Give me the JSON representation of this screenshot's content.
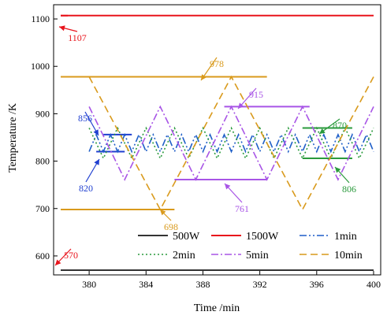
{
  "chart_data": {
    "type": "line",
    "xlabel": "Time /min",
    "ylabel": "Temperature /K",
    "xlim": [
      377.5,
      400.5
    ],
    "ylim": [
      560,
      1130
    ],
    "x_ticks": [
      "380",
      "384",
      "388",
      "392",
      "396",
      "400"
    ],
    "y_ticks": [
      "600",
      "700",
      "800",
      "900",
      "1000",
      "1100"
    ],
    "legend_position": "bottom",
    "series": [
      {
        "name": "500W",
        "color": "#333333",
        "style": "solid",
        "x": [
          378.0,
          400.0
        ],
        "y": [
          570,
          570
        ]
      },
      {
        "name": "1500W",
        "color": "#e8141c",
        "style": "solid",
        "x": [
          378.0,
          400.0
        ],
        "y": [
          1107,
          1107
        ]
      },
      {
        "name": "1min",
        "color": "#1f5fc8",
        "style": "dashdotdot",
        "x": [
          380.0,
          380.5,
          381.0,
          381.5,
          382.0,
          382.5,
          383.0,
          383.5,
          384.0,
          384.5,
          385.0,
          385.5,
          386.0,
          386.5,
          387.0,
          387.5,
          388.0,
          388.5,
          389.0,
          389.5,
          390.0,
          390.5,
          391.0,
          391.5,
          392.0,
          392.5,
          393.0,
          393.5,
          394.0,
          394.5,
          395.0,
          395.5,
          396.0,
          396.5,
          397.0,
          397.5,
          398.0,
          398.5,
          399.0,
          399.5,
          400.0
        ],
        "y": [
          820,
          856,
          820,
          856,
          820,
          856,
          820,
          856,
          820,
          856,
          820,
          856,
          820,
          856,
          820,
          856,
          820,
          856,
          820,
          856,
          820,
          856,
          820,
          856,
          820,
          856,
          820,
          856,
          820,
          856,
          820,
          856,
          820,
          856,
          820,
          856,
          820,
          856,
          820,
          856,
          820
        ]
      },
      {
        "name": "2min",
        "color": "#2a9a3c",
        "style": "dot",
        "x": [
          380,
          381,
          382,
          383,
          384,
          385,
          386,
          387,
          388,
          389,
          390,
          391,
          392,
          393,
          394,
          395,
          396,
          397,
          398,
          399,
          400
        ],
        "y": [
          870,
          806,
          870,
          806,
          870,
          806,
          870,
          806,
          870,
          806,
          870,
          806,
          870,
          806,
          870,
          806,
          870,
          806,
          870,
          806,
          870
        ]
      },
      {
        "name": "5min",
        "color": "#a855e6",
        "style": "dashdot",
        "x": [
          380.0,
          382.5,
          385.0,
          387.5,
          390.0,
          392.5,
          395.0,
          397.5,
          400.0
        ],
        "y": [
          915,
          761,
          915,
          761,
          915,
          761,
          915,
          761,
          915
        ]
      },
      {
        "name": "10min",
        "color": "#d99a1c",
        "style": "dash",
        "x": [
          380.0,
          385.0,
          390.0,
          395.0,
          400.0
        ],
        "y": [
          978,
          698,
          978,
          698,
          978
        ]
      }
    ],
    "reference_lines": [
      {
        "value": 1107,
        "label": "1107",
        "color": "#e8141c",
        "x_range": [
          378.0,
          378.5
        ]
      },
      {
        "value": 570,
        "label": "570",
        "color": "#e8141c",
        "x_range": [
          378.0,
          378.5
        ]
      },
      {
        "value": 978,
        "label": "978",
        "color": "#d99a1c",
        "x_range": [
          378.0,
          392.5
        ]
      },
      {
        "value": 698,
        "label": "698",
        "color": "#d99a1c",
        "x_range": [
          378.0,
          386.0
        ]
      },
      {
        "value": 915,
        "label": "915",
        "color": "#a855e6",
        "x_range": [
          389.5,
          395.5
        ]
      },
      {
        "value": 761,
        "label": "761",
        "color": "#a855e6",
        "x_range": [
          386.0,
          392.5
        ]
      },
      {
        "value": 856,
        "label": "856",
        "color": "#1f3fd0",
        "x_range": [
          381.0,
          383.0
        ]
      },
      {
        "value": 820,
        "label": "820",
        "color": "#1f3fd0",
        "x_range": [
          380.5,
          382.5
        ]
      },
      {
        "value": 870,
        "label": "870",
        "color": "#2a9a3c",
        "x_range": [
          395.0,
          398.5
        ]
      },
      {
        "value": 806,
        "label": "806",
        "color": "#2a9a3c",
        "x_range": [
          395.0,
          398.5
        ]
      }
    ]
  }
}
